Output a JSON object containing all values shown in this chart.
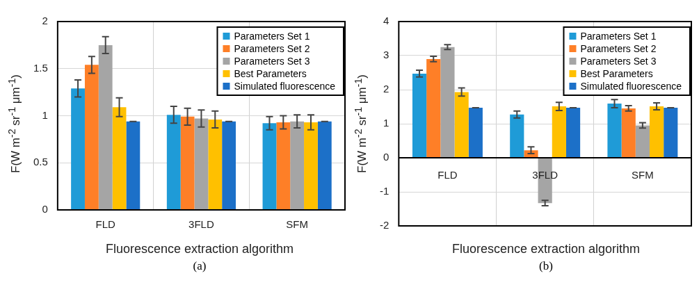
{
  "chart_data": [
    {
      "type": "bar",
      "categories": [
        "FLD",
        "3FLD",
        "SFM"
      ],
      "xlabel": "Fluorescence extraction algorithm",
      "ylabel": "F(W m$^{-2}$ sr$^{-1}$ μm$^{-1}$)",
      "ylim": [
        0,
        2
      ],
      "yticks": [
        0,
        0.5,
        1,
        1.5,
        2
      ],
      "grid": true,
      "legend": "top right",
      "annotations": [
        "(a)"
      ],
      "series": [
        {
          "name": "Parameters Set 1",
          "color": "#1f9bd7",
          "values": [
            1.29,
            1.01,
            0.92
          ],
          "errors": [
            0.09,
            0.09,
            0.07
          ]
        },
        {
          "name": "Parameters Set 2",
          "color": "#fe7f27",
          "values": [
            1.54,
            0.99,
            0.93
          ],
          "errors": [
            0.09,
            0.09,
            0.07
          ]
        },
        {
          "name": "Parameters Set 3",
          "color": "#a5a5a5",
          "values": [
            1.75,
            0.97,
            0.94
          ],
          "errors": [
            0.09,
            0.09,
            0.07
          ]
        },
        {
          "name": "Best Parameters",
          "color": "#ffc000",
          "values": [
            1.09,
            0.96,
            0.93
          ],
          "errors": [
            0.1,
            0.09,
            0.08
          ]
        },
        {
          "name": "Simulated fluorescence",
          "color": "#1c70c8",
          "values": [
            0.94,
            0.94,
            0.94
          ],
          "errors": [
            0,
            0,
            0
          ]
        }
      ]
    },
    {
      "type": "bar",
      "categories": [
        "FLD",
        "3FLD",
        "SFM"
      ],
      "xlabel": "Fluorescence extraction algorithm",
      "ylabel": "F(W m$^{-2}$ sr$^{-1}$ μm$^{-1}$)",
      "ylim": [
        -2,
        4
      ],
      "yticks": [
        -2,
        -1,
        0,
        1,
        2,
        3,
        4
      ],
      "grid": true,
      "legend": "top right",
      "annotations": [
        "(b)"
      ],
      "series": [
        {
          "name": "Parameters Set 1",
          "color": "#1f9bd7",
          "values": [
            2.47,
            1.27,
            1.59
          ],
          "errors": [
            0.1,
            0.1,
            0.12
          ]
        },
        {
          "name": "Parameters Set 2",
          "color": "#fe7f27",
          "values": [
            2.9,
            0.22,
            1.45
          ],
          "errors": [
            0.08,
            0.1,
            0.08
          ]
        },
        {
          "name": "Parameters Set 3",
          "color": "#a5a5a5",
          "values": [
            3.25,
            -1.33,
            0.95
          ],
          "errors": [
            0.07,
            0.08,
            0.08
          ]
        },
        {
          "name": "Best Parameters",
          "color": "#ffc000",
          "values": [
            1.93,
            1.51,
            1.51
          ],
          "errors": [
            0.12,
            0.12,
            0.1
          ]
        },
        {
          "name": "Simulated fluorescence",
          "color": "#1c70c8",
          "values": [
            1.47,
            1.47,
            1.47
          ],
          "errors": [
            0,
            0,
            0
          ]
        }
      ]
    }
  ]
}
